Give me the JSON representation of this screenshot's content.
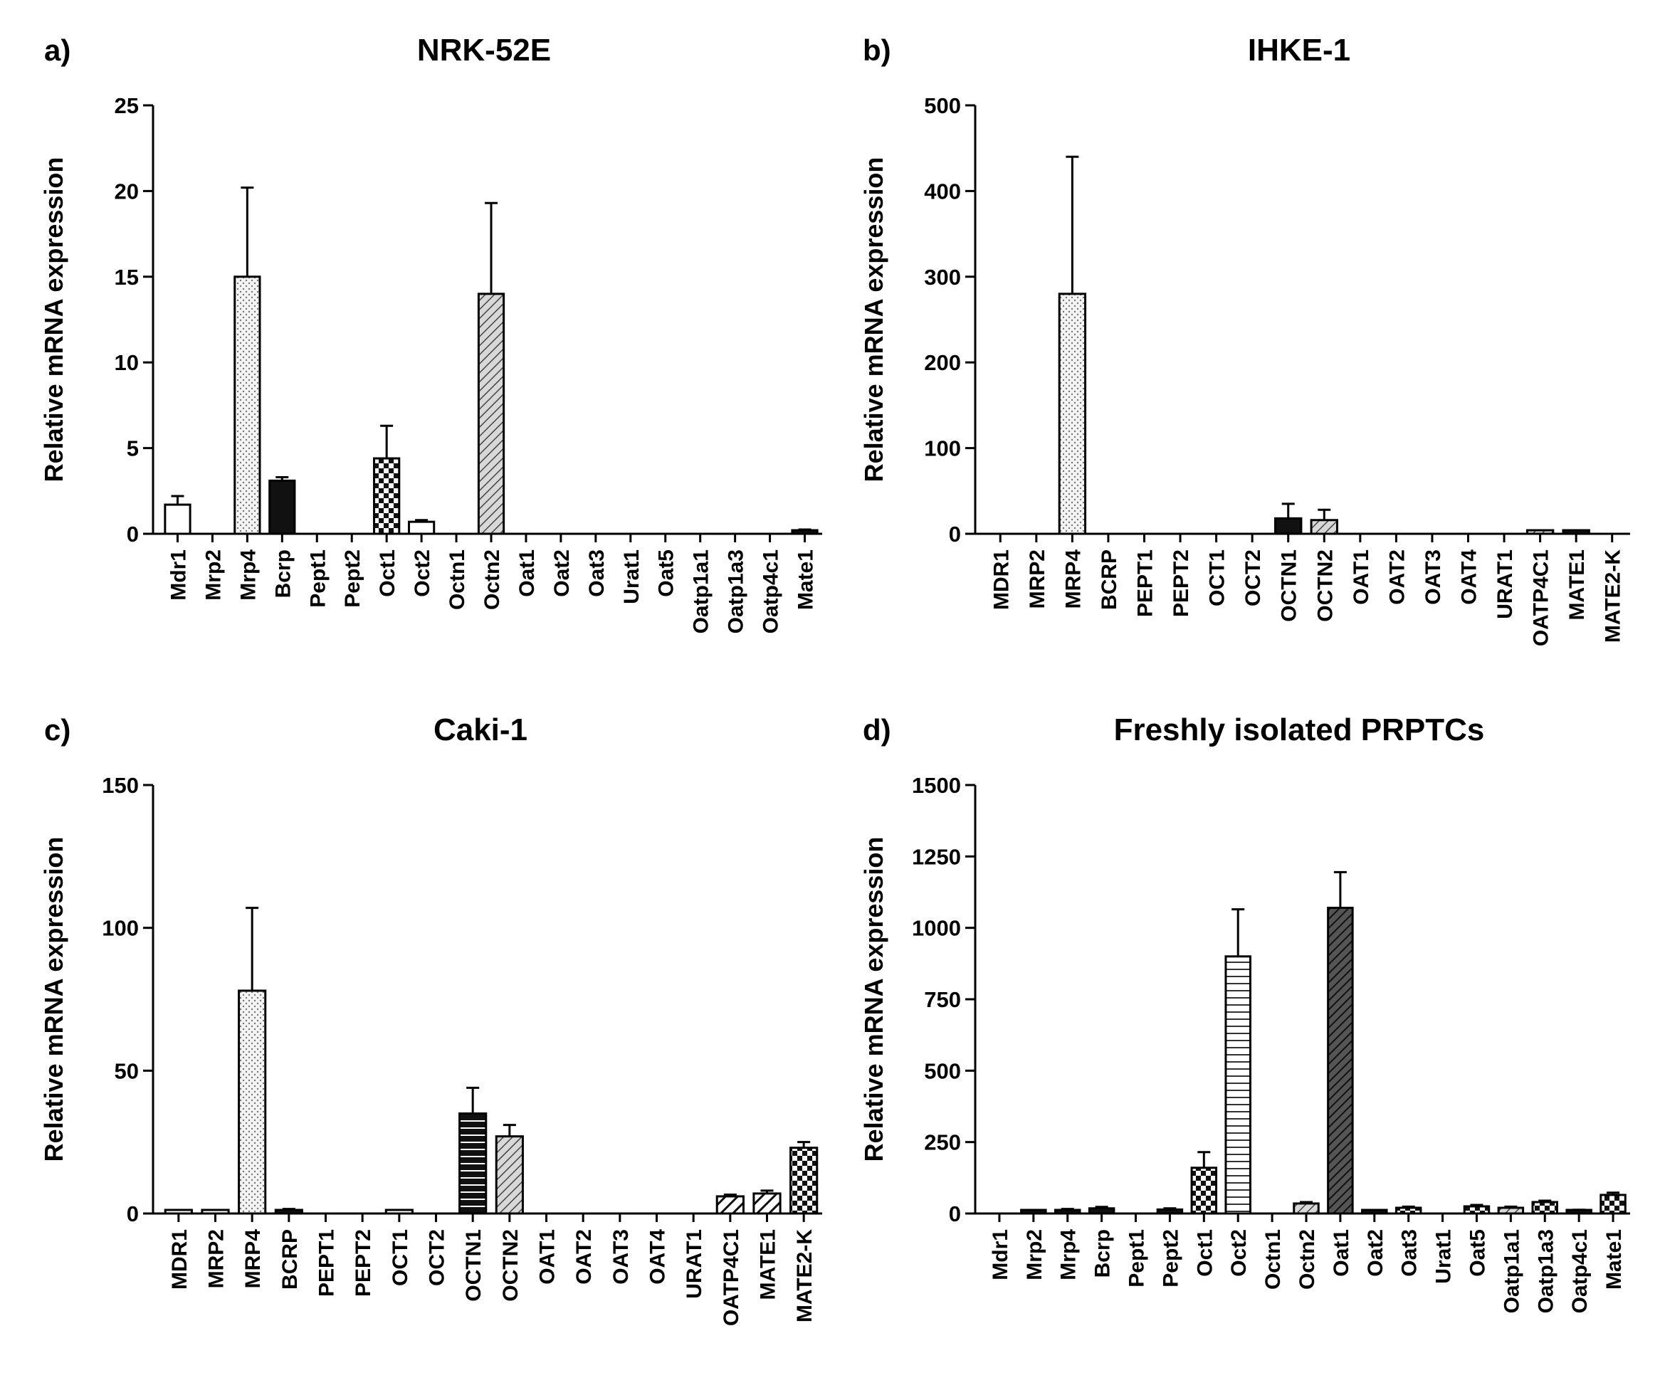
{
  "chart_data": [
    {
      "type": "bar",
      "panel_label": "a)",
      "title": "NRK-52E",
      "xlabel": "",
      "ylabel": "Relative mRNA expression",
      "ylim": [
        0,
        25
      ],
      "yticks": [
        0,
        5,
        10,
        15,
        20,
        25
      ],
      "categories": [
        "Mdr1",
        "Mrp2",
        "Mrp4",
        "Bcrp",
        "Pept1",
        "Pept2",
        "Oct1",
        "Oct2",
        "Octn1",
        "Octn2",
        "Oat1",
        "Oat2",
        "Oat3",
        "Urat1",
        "Oat5",
        "Oatp1a1",
        "Oatp1a3",
        "Oatp4c1",
        "Mate1"
      ],
      "values": [
        1.7,
        0,
        15,
        3.1,
        0,
        0,
        4.4,
        0.7,
        0,
        14,
        0,
        0,
        0,
        0,
        0,
        0,
        0,
        0,
        0.2
      ],
      "errors": [
        0.5,
        0,
        5.2,
        0.2,
        0,
        0,
        1.9,
        0.1,
        0,
        5.3,
        0,
        0,
        0,
        0,
        0,
        0,
        0,
        0,
        0.05
      ],
      "patterns": [
        "white",
        "none",
        "dots",
        "black",
        "none",
        "none",
        "checker",
        "white",
        "none",
        "diag",
        "none",
        "none",
        "none",
        "none",
        "none",
        "none",
        "none",
        "none",
        "black"
      ]
    },
    {
      "type": "bar",
      "panel_label": "b)",
      "title": "IHKE-1",
      "xlabel": "",
      "ylabel": "Relative mRNA expression",
      "ylim": [
        0,
        500
      ],
      "yticks": [
        0,
        100,
        200,
        300,
        400,
        500
      ],
      "categories": [
        "MDR1",
        "MRP2",
        "MRP4",
        "BCRP",
        "PEPT1",
        "PEPT2",
        "OCT1",
        "OCT2",
        "OCTN1",
        "OCTN2",
        "OAT1",
        "OAT2",
        "OAT3",
        "OAT4",
        "URAT1",
        "OATP4C1",
        "MATE1",
        "MATE2-K"
      ],
      "values": [
        0,
        0,
        280,
        0,
        0,
        0,
        0,
        0,
        18,
        16,
        0,
        0,
        0,
        0,
        0,
        3,
        3,
        0
      ],
      "errors": [
        0,
        0,
        160,
        0,
        0,
        0,
        0,
        0,
        17,
        12,
        0,
        0,
        0,
        0,
        0,
        1,
        1,
        0
      ],
      "patterns": [
        "none",
        "none",
        "dots",
        "none",
        "none",
        "none",
        "none",
        "none",
        "black",
        "diag",
        "none",
        "none",
        "none",
        "none",
        "none",
        "diag",
        "black",
        "none"
      ]
    },
    {
      "type": "bar",
      "panel_label": "c)",
      "title": "Caki-1",
      "xlabel": "",
      "ylabel": "Relative mRNA expression",
      "ylim": [
        0,
        150
      ],
      "yticks": [
        0,
        50,
        100,
        150
      ],
      "categories": [
        "MDR1",
        "MRP2",
        "MRP4",
        "BCRP",
        "PEPT1",
        "PEPT2",
        "OCT1",
        "OCT2",
        "OCTN1",
        "OCTN2",
        "OAT1",
        "OAT2",
        "OAT3",
        "OAT4",
        "URAT1",
        "OATP4C1",
        "MATE1",
        "MATE2-K"
      ],
      "values": [
        0.3,
        0.5,
        78,
        1.2,
        0,
        0,
        0.2,
        0,
        35,
        27,
        0,
        0,
        0,
        0,
        0,
        6,
        7,
        23
      ],
      "errors": [
        0,
        0,
        29,
        0.4,
        0,
        0,
        0,
        0,
        9,
        4,
        0,
        0,
        0,
        0,
        0,
        0.6,
        1,
        2
      ],
      "patterns": [
        "white",
        "white",
        "dots",
        "black",
        "none",
        "none",
        "white",
        "none",
        "hstripe-black",
        "diag",
        "none",
        "none",
        "none",
        "none",
        "none",
        "diag-black",
        "diag-black",
        "checker"
      ]
    },
    {
      "type": "bar",
      "panel_label": "d)",
      "title": "Freshly isolated PRPTCs",
      "xlabel": "",
      "ylabel": "Relative mRNA expression",
      "ylim": [
        0,
        1500
      ],
      "yticks": [
        0,
        250,
        500,
        750,
        1000,
        1250,
        1500
      ],
      "categories": [
        "Mdr1",
        "Mrp2",
        "Mrp4",
        "Bcrp",
        "Pept1",
        "Pept2",
        "Oct1",
        "Oct2",
        "Octn1",
        "Octn2",
        "Oat1",
        "Oat2",
        "Oat3",
        "Urat1",
        "Oat5",
        "Oatp1a1",
        "Oatp1a3",
        "Oatp4c1",
        "Mate1"
      ],
      "values": [
        0,
        4,
        12,
        18,
        0,
        14,
        160,
        900,
        0,
        35,
        1070,
        5,
        20,
        0,
        25,
        20,
        40,
        10,
        65
      ],
      "errors": [
        0,
        2,
        4,
        5,
        0,
        4,
        55,
        165,
        0,
        5,
        125,
        2,
        4,
        0,
        5,
        4,
        5,
        3,
        8
      ],
      "patterns": [
        "none",
        "black",
        "black",
        "black",
        "none",
        "black",
        "checker",
        "hstripe",
        "none",
        "diag",
        "diag-dark",
        "black",
        "checker",
        "none",
        "checker",
        "diag",
        "checker",
        "black",
        "checker"
      ]
    }
  ]
}
